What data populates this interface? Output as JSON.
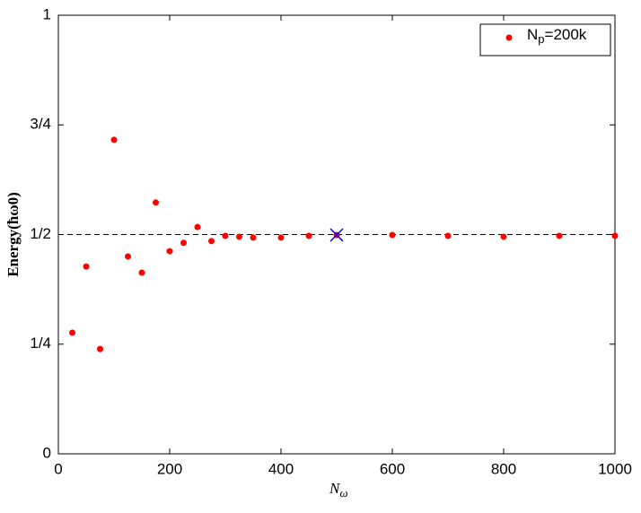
{
  "chart_data": {
    "type": "scatter",
    "xlabel": "Nω",
    "ylabel": "Energy(ħω0)",
    "series": [
      {
        "name": "Np=200k",
        "color": "#ff0000",
        "x": [
          25,
          50,
          75,
          100,
          125,
          150,
          175,
          200,
          225,
          250,
          275,
          300,
          325,
          350,
          400,
          450,
          500,
          600,
          700,
          800,
          900,
          1000
        ],
        "values": [
          0.276,
          0.427,
          0.239,
          0.716,
          0.45,
          0.413,
          0.573,
          0.462,
          0.481,
          0.517,
          0.485,
          0.497,
          0.495,
          0.493,
          0.493,
          0.497,
          0.499,
          0.499,
          0.497,
          0.495,
          0.497,
          0.497
        ]
      }
    ],
    "highlight": {
      "x": 500,
      "y": 0.499,
      "color": "#0000ff"
    },
    "hline": 0.5,
    "xlim": [
      0,
      1000
    ],
    "xticks": [
      0,
      200,
      400,
      600,
      800,
      1000
    ],
    "ylim": [
      0,
      1
    ],
    "yticks": [
      0,
      {
        "value": 0.25,
        "label": "1/4"
      },
      {
        "value": 0.5,
        "label": "1/2"
      },
      {
        "value": 0.75,
        "label": "3/4"
      },
      1
    ],
    "legend": "upper right",
    "grid": false
  }
}
